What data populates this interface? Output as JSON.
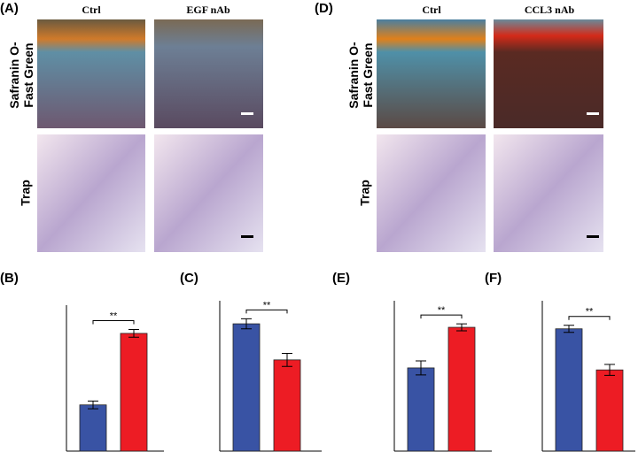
{
  "panels": [
    {
      "label": "(A)",
      "columns": [
        "Ctrl",
        "EGF nAb"
      ],
      "rows": [
        "Safranin O-Fast Green",
        "Trap"
      ]
    },
    {
      "label": "(D)",
      "columns": [
        "Ctrl",
        "CCL3 nAb"
      ],
      "rows": [
        "Safranin O-Fast Green",
        "Trap"
      ]
    }
  ],
  "chart_data": [
    {
      "type": "bar",
      "label": "(B)",
      "categories": [
        null,
        null
      ],
      "values": [
        0.95,
        2.42
      ],
      "errors": [
        0.08,
        0.08
      ],
      "colors": [
        "#3953a4",
        "#ed1c24"
      ],
      "ylim": [
        0,
        3
      ],
      "significance": "**"
    },
    {
      "type": "bar",
      "label": "(C)",
      "categories": [
        null,
        null
      ],
      "values": [
        2.54,
        1.82
      ],
      "errors": [
        0.1,
        0.13
      ],
      "colors": [
        "#3953a4",
        "#ed1c24"
      ],
      "ylim": [
        0,
        3
      ],
      "significance": "**"
    },
    {
      "type": "bar",
      "label": "(E)",
      "categories": [
        null,
        null
      ],
      "values": [
        1.66,
        2.47
      ],
      "errors": [
        0.14,
        0.07
      ],
      "colors": [
        "#3953a4",
        "#ed1c24"
      ],
      "ylim": [
        0,
        3
      ],
      "significance": "**"
    },
    {
      "type": "bar",
      "label": "(F)",
      "categories": [
        null,
        null
      ],
      "values": [
        2.44,
        1.62
      ],
      "errors": [
        0.07,
        0.11
      ],
      "colors": [
        "#3953a4",
        "#ed1c24"
      ],
      "ylim": [
        0,
        3
      ],
      "significance": "**"
    }
  ]
}
